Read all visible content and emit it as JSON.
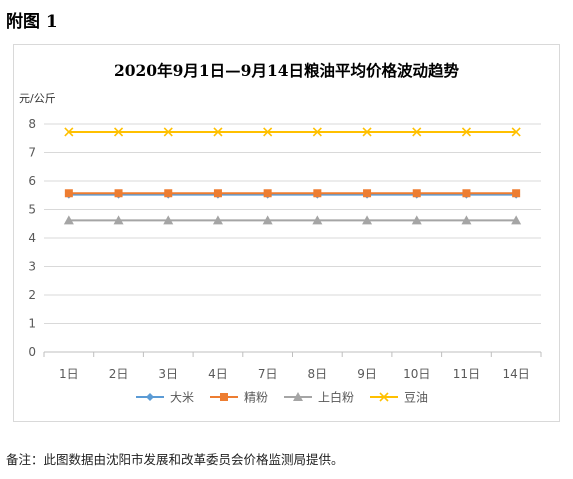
{
  "figure_label": "附图 1",
  "note": "备注：此图数据由沈阳市发展和改革委员会价格监测局提供。",
  "chart_data": {
    "type": "line",
    "title": "2020年9月1日—9月14日粮油平均价格波动趋势",
    "ylabel": "元/公斤",
    "xlabel": "",
    "ylim": [
      0,
      8
    ],
    "yticks": [
      0,
      1,
      2,
      3,
      4,
      5,
      6,
      7,
      8
    ],
    "grid": true,
    "legend_position": "bottom",
    "categories": [
      "1日",
      "2日",
      "3日",
      "4日",
      "7日",
      "8日",
      "9日",
      "10日",
      "11日",
      "14日"
    ],
    "series": [
      {
        "name": "大米",
        "color": "#5b9bd5",
        "marker": "diamond",
        "values": [
          5.52,
          5.52,
          5.52,
          5.52,
          5.52,
          5.52,
          5.52,
          5.52,
          5.52,
          5.52
        ]
      },
      {
        "name": "精粉",
        "color": "#ed7d31",
        "marker": "square",
        "values": [
          5.57,
          5.57,
          5.57,
          5.57,
          5.57,
          5.57,
          5.57,
          5.57,
          5.57,
          5.57
        ]
      },
      {
        "name": "上白粉",
        "color": "#a5a5a5",
        "marker": "triangle",
        "values": [
          4.62,
          4.62,
          4.62,
          4.62,
          4.62,
          4.62,
          4.62,
          4.62,
          4.62,
          4.62
        ]
      },
      {
        "name": "豆油",
        "color": "#ffc000",
        "marker": "x",
        "values": [
          7.72,
          7.72,
          7.72,
          7.72,
          7.72,
          7.72,
          7.72,
          7.72,
          7.72,
          7.72
        ]
      }
    ]
  }
}
